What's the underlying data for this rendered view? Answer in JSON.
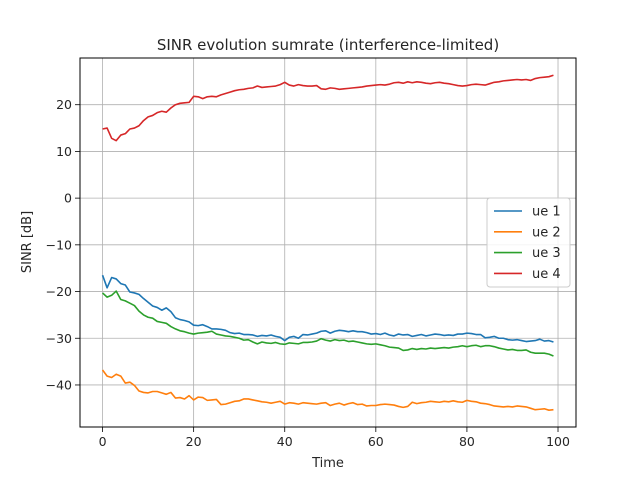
{
  "chart_data": {
    "type": "line",
    "title": "SINR evolution sumrate (interference-limited)",
    "xlabel": "Time",
    "ylabel": "SINR [dB]",
    "xlim": [
      -4.95,
      103.95
    ],
    "ylim": [
      -49,
      30
    ],
    "xticks": [
      0,
      20,
      40,
      60,
      80,
      100
    ],
    "yticks": [
      -40,
      -30,
      -20,
      -10,
      0,
      10,
      20
    ],
    "grid": true,
    "legend_position": "center-right",
    "series": [
      {
        "name": "ue 1",
        "color": "#1f77b4",
        "values": [
          -16.5,
          -19.2,
          -17.0,
          -17.3,
          -18.3,
          -18.6,
          -20.1,
          -20.3,
          -20.6,
          -21.5,
          -22.3,
          -23.1,
          -23.4,
          -24.0,
          -23.5,
          -24.3,
          -25.6,
          -26.0,
          -26.2,
          -26.5,
          -27.2,
          -27.3,
          -27.1,
          -27.5,
          -28.0,
          -28.0,
          -28.1,
          -28.3,
          -28.8,
          -29.0,
          -28.9,
          -29.2,
          -29.2,
          -29.3,
          -29.6,
          -29.4,
          -29.5,
          -29.3,
          -29.6,
          -29.8,
          -30.5,
          -29.8,
          -29.6,
          -30.0,
          -29.2,
          -29.3,
          -29.1,
          -28.9,
          -28.5,
          -28.4,
          -28.9,
          -28.5,
          -28.3,
          -28.4,
          -28.6,
          -28.4,
          -28.6,
          -28.6,
          -28.8,
          -29.1,
          -29.0,
          -29.2,
          -28.9,
          -29.3,
          -29.5,
          -29.1,
          -29.3,
          -29.2,
          -29.6,
          -29.4,
          -29.2,
          -29.5,
          -29.3,
          -29.1,
          -29.2,
          -29.4,
          -29.3,
          -29.4,
          -29.1,
          -29.1,
          -28.9,
          -29.0,
          -29.2,
          -29.2,
          -29.9,
          -29.8,
          -29.6,
          -30.0,
          -30.0,
          -30.3,
          -30.4,
          -30.3,
          -30.5,
          -30.7,
          -30.6,
          -30.5,
          -30.2,
          -30.6,
          -30.5,
          -30.8
        ]
      },
      {
        "name": "ue 2",
        "color": "#ff7f0e",
        "values": [
          -36.8,
          -38.1,
          -38.4,
          -37.7,
          -38.1,
          -39.6,
          -39.4,
          -40.1,
          -41.3,
          -41.6,
          -41.7,
          -41.4,
          -41.4,
          -41.7,
          -42.0,
          -41.6,
          -42.8,
          -42.7,
          -43.0,
          -42.3,
          -43.2,
          -42.6,
          -42.7,
          -43.3,
          -43.2,
          -43.1,
          -44.2,
          -44.1,
          -43.8,
          -43.5,
          -43.4,
          -43.0,
          -43.0,
          -43.2,
          -43.4,
          -43.6,
          -43.7,
          -43.9,
          -43.7,
          -43.5,
          -44.1,
          -43.8,
          -43.9,
          -44.1,
          -43.8,
          -43.9,
          -44.0,
          -44.1,
          -43.9,
          -43.8,
          -44.4,
          -44.1,
          -43.9,
          -44.3,
          -44.0,
          -43.8,
          -44.2,
          -44.1,
          -44.5,
          -44.4,
          -44.4,
          -44.2,
          -44.1,
          -44.2,
          -44.3,
          -44.6,
          -44.8,
          -44.6,
          -43.7,
          -44.0,
          -43.8,
          -43.7,
          -43.5,
          -43.6,
          -43.7,
          -43.5,
          -43.6,
          -43.4,
          -43.6,
          -43.7,
          -43.3,
          -43.5,
          -43.6,
          -43.9,
          -44.0,
          -44.2,
          -44.5,
          -44.6,
          -44.7,
          -44.6,
          -44.7,
          -44.5,
          -44.6,
          -44.7,
          -45.0,
          -45.3,
          -45.2,
          -45.1,
          -45.4,
          -45.3
        ]
      },
      {
        "name": "ue 3",
        "color": "#2ca02c",
        "values": [
          -20.3,
          -21.2,
          -20.8,
          -19.9,
          -21.7,
          -22.0,
          -22.5,
          -23.0,
          -24.2,
          -25.0,
          -25.5,
          -25.7,
          -26.4,
          -26.6,
          -26.8,
          -27.5,
          -28.0,
          -28.4,
          -28.6,
          -28.9,
          -29.1,
          -28.9,
          -28.8,
          -28.7,
          -28.5,
          -29.1,
          -29.3,
          -29.5,
          -29.6,
          -29.8,
          -30.0,
          -30.4,
          -30.3,
          -30.8,
          -31.2,
          -30.8,
          -31.0,
          -31.1,
          -30.9,
          -31.2,
          -31.3,
          -31.0,
          -31.1,
          -31.2,
          -30.9,
          -30.9,
          -30.8,
          -30.6,
          -30.1,
          -30.4,
          -30.6,
          -30.3,
          -30.5,
          -30.4,
          -30.7,
          -30.6,
          -30.8,
          -31.0,
          -31.2,
          -31.3,
          -31.2,
          -31.4,
          -31.6,
          -31.9,
          -32.0,
          -32.1,
          -32.6,
          -32.5,
          -32.2,
          -32.4,
          -32.2,
          -32.3,
          -32.1,
          -32.2,
          -32.1,
          -32.0,
          -32.1,
          -31.9,
          -31.8,
          -31.6,
          -31.8,
          -31.6,
          -31.5,
          -31.8,
          -31.6,
          -31.6,
          -31.8,
          -32.1,
          -32.3,
          -32.5,
          -32.4,
          -32.6,
          -32.6,
          -32.5,
          -33.0,
          -33.2,
          -33.2,
          -33.2,
          -33.4,
          -33.8
        ]
      },
      {
        "name": "ue 4",
        "color": "#d62728",
        "values": [
          14.8,
          15.0,
          12.8,
          12.3,
          13.5,
          13.8,
          14.8,
          15.0,
          15.5,
          16.6,
          17.4,
          17.7,
          18.3,
          18.6,
          18.4,
          19.3,
          20.0,
          20.3,
          20.4,
          20.5,
          21.8,
          21.7,
          21.3,
          21.7,
          21.8,
          21.7,
          22.1,
          22.4,
          22.7,
          23.0,
          23.2,
          23.3,
          23.5,
          23.6,
          24.0,
          23.7,
          23.8,
          23.9,
          24.0,
          24.3,
          24.8,
          24.2,
          24.0,
          24.3,
          24.1,
          24.0,
          24.0,
          24.1,
          23.4,
          23.3,
          23.6,
          23.5,
          23.3,
          23.4,
          23.5,
          23.6,
          23.7,
          23.8,
          24.0,
          24.1,
          24.2,
          24.3,
          24.2,
          24.4,
          24.7,
          24.8,
          24.6,
          24.9,
          24.7,
          24.9,
          24.8,
          24.6,
          24.5,
          24.7,
          24.8,
          24.6,
          24.5,
          24.3,
          24.1,
          24.0,
          24.1,
          24.3,
          24.4,
          24.3,
          24.2,
          24.5,
          24.8,
          24.9,
          25.1,
          25.2,
          25.3,
          25.4,
          25.3,
          25.4,
          25.2,
          25.6,
          25.8,
          25.9,
          26.0,
          26.3
        ]
      }
    ]
  }
}
